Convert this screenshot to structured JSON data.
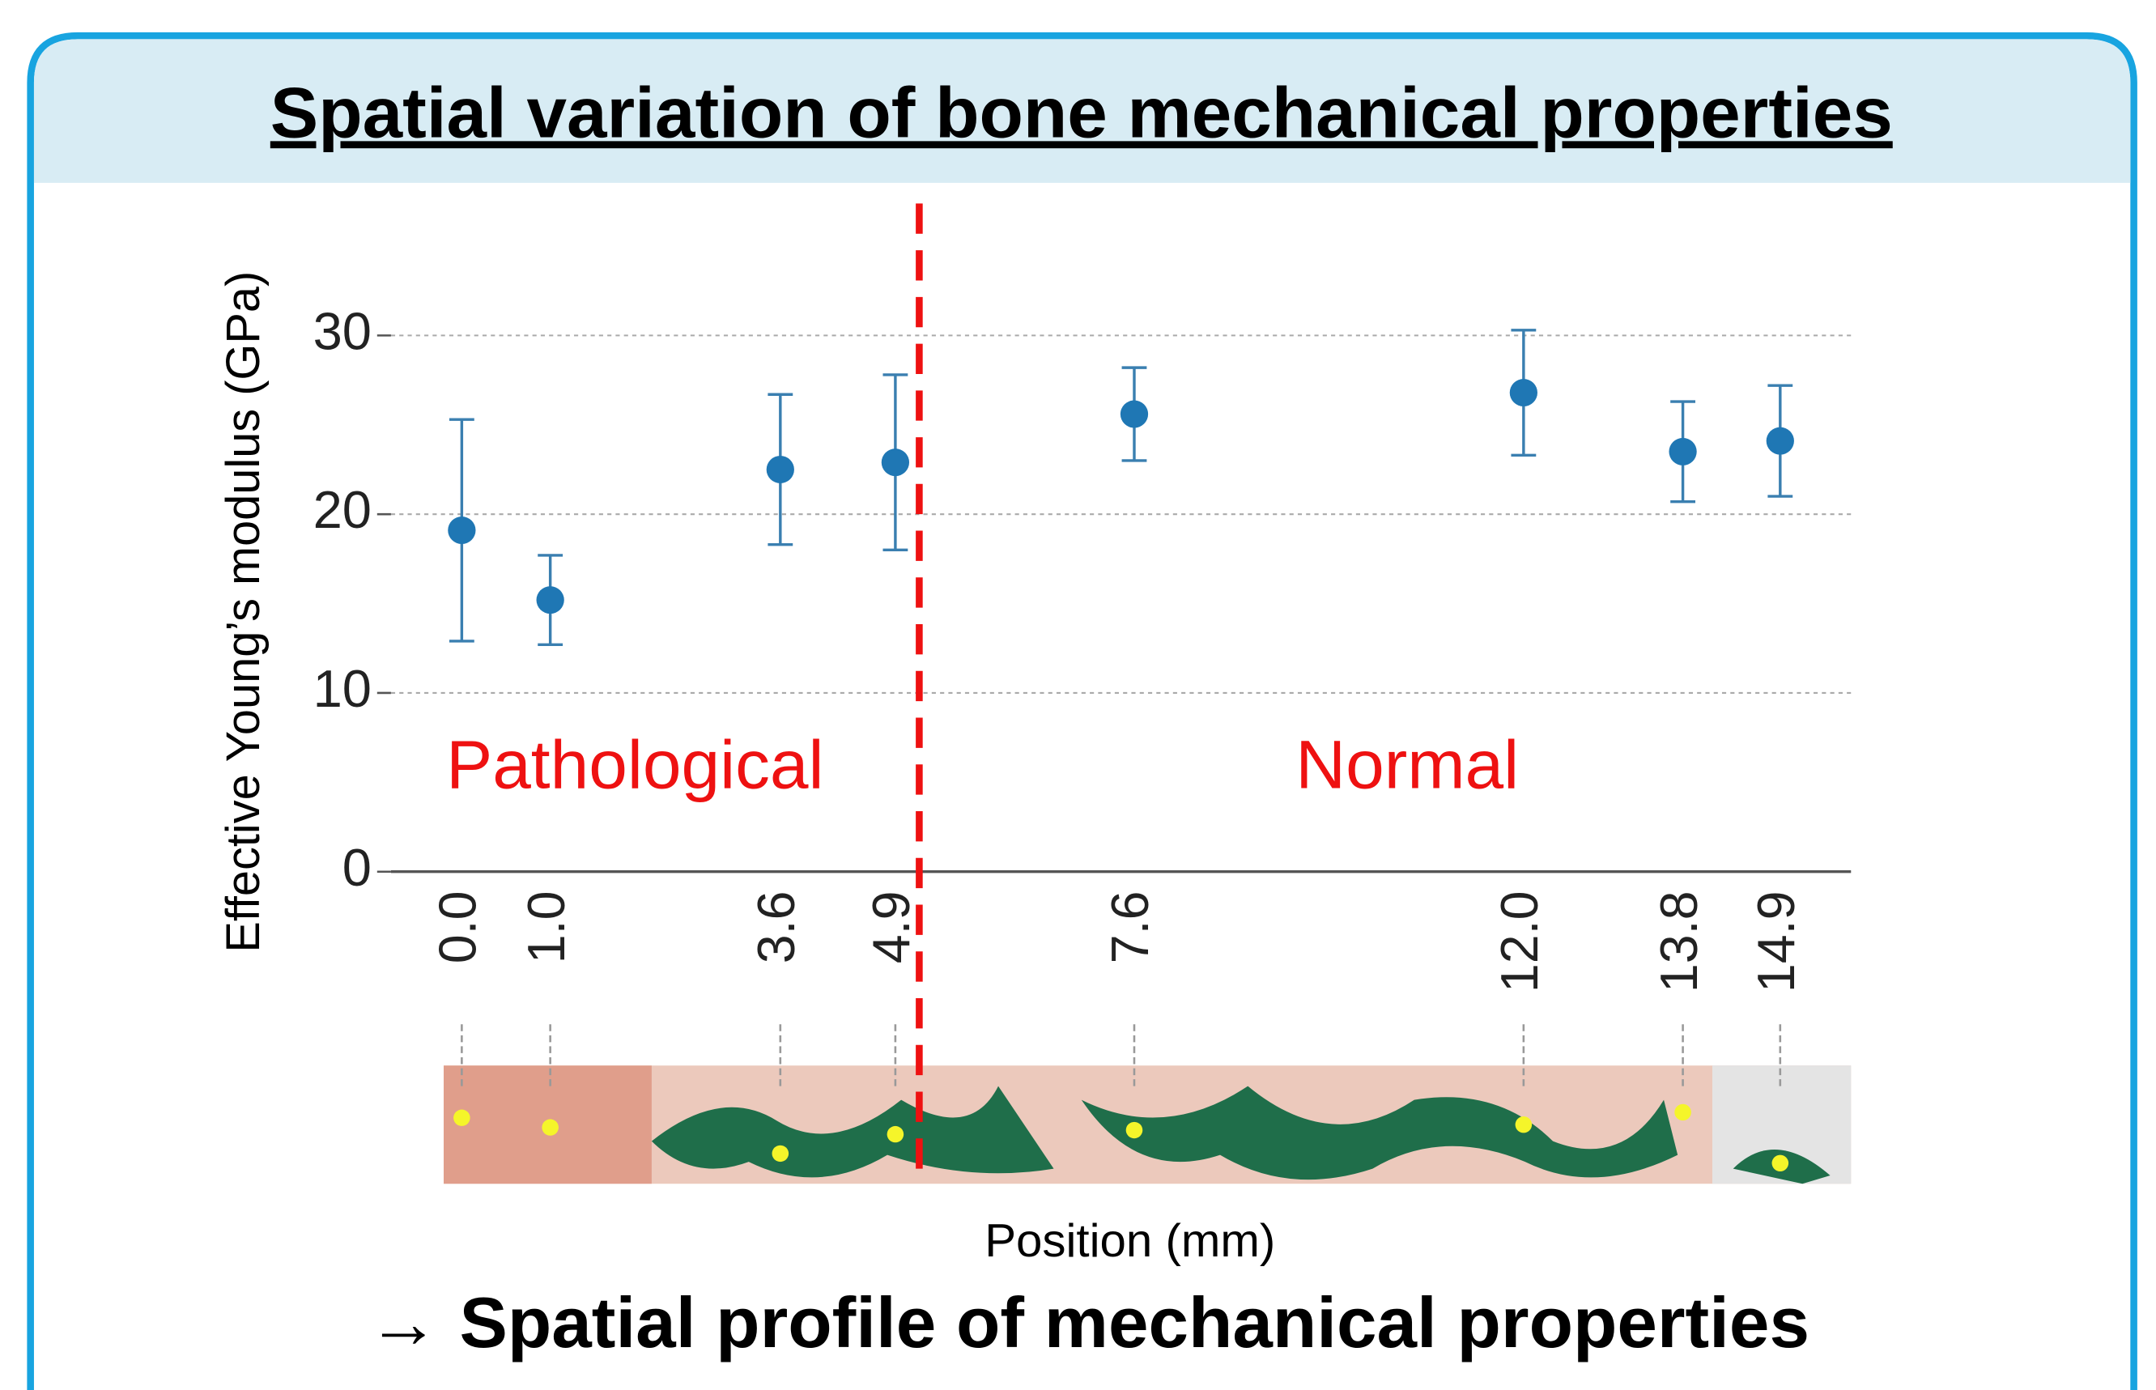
{
  "chart_data": {
    "type": "errorbar",
    "title": "Spatial variation of bone mechanical properties",
    "y_label": "Effective Young’s modulus (GPa)",
    "x_label": "Position (mm)",
    "x": [
      0.0,
      1.0,
      3.6,
      4.9,
      7.6,
      12.0,
      13.8,
      14.9
    ],
    "values": [
      19.1,
      15.2,
      22.5,
      22.9,
      25.6,
      26.8,
      23.5,
      24.1
    ],
    "errors": [
      6.2,
      2.5,
      4.2,
      4.9,
      2.6,
      3.5,
      2.8,
      3.1
    ],
    "color": "#1f77b4",
    "xlim": [
      -0.8,
      15.7
    ],
    "ylim": [
      0,
      33
    ],
    "xticks": [
      {
        "value": 0.0,
        "label": "0.0"
      },
      {
        "value": 1.0,
        "label": "1.0"
      },
      {
        "value": 3.6,
        "label": "3.6"
      },
      {
        "value": 4.9,
        "label": "4.9"
      },
      {
        "value": 7.6,
        "label": "7.6"
      },
      {
        "value": 12.0,
        "label": "12.0"
      },
      {
        "value": 13.8,
        "label": "13.8"
      },
      {
        "value": 14.9,
        "label": "14.9"
      }
    ],
    "yticks": [
      0,
      10,
      20,
      30
    ],
    "grid": true,
    "divider": 5.17,
    "divider_color": "#ee1111",
    "annotations": [
      "Pathological",
      "Normal"
    ],
    "conclusion": "→ Spatial profile of mechanical properties"
  }
}
